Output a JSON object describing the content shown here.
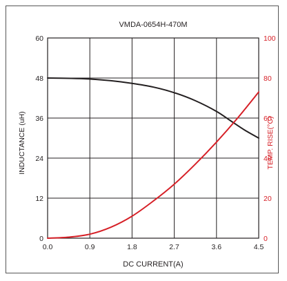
{
  "chart_data": {
    "type": "line",
    "title": "VMDA-0654H-470M",
    "xlabel": "DC CURRENT(A)",
    "ylabel_left": "INDUCTANCE (uH)",
    "ylabel_right": "TEMP. RISE(°C)",
    "xlim": [
      0,
      4.5
    ],
    "ylim_left": [
      0,
      60
    ],
    "ylim_right": [
      0,
      100
    ],
    "x_ticks": [
      "0.0",
      "0.9",
      "1.8",
      "2.7",
      "3.6",
      "4.5"
    ],
    "y_ticks_left": [
      "0",
      "12",
      "24",
      "36",
      "48",
      "60"
    ],
    "y_ticks_right": [
      "0",
      "20",
      "40",
      "60",
      "80",
      "100"
    ],
    "grid": true,
    "colors": {
      "inductance": "#231f20",
      "temp_rise": "#d62027",
      "grid": "#231f20",
      "right_axis_text": "#d62027"
    },
    "series": [
      {
        "axis": "left",
        "x": [
          0,
          0.5,
          0.9,
          1.35,
          1.8,
          2.25,
          2.7,
          3.15,
          3.6,
          3.9,
          4.2,
          4.5
        ],
        "values": [
          48,
          47.9,
          47.7,
          47.2,
          46.4,
          45.3,
          43.6,
          41.2,
          38,
          35.2,
          32.4,
          30
        ]
      },
      {
        "axis": "right",
        "x": [
          0,
          0.45,
          0.9,
          1.35,
          1.8,
          2.25,
          2.7,
          3.15,
          3.6,
          4.05,
          4.5
        ],
        "values": [
          0,
          0.5,
          2,
          5.5,
          11,
          18.5,
          27,
          37,
          48,
          60,
          73
        ]
      }
    ]
  }
}
